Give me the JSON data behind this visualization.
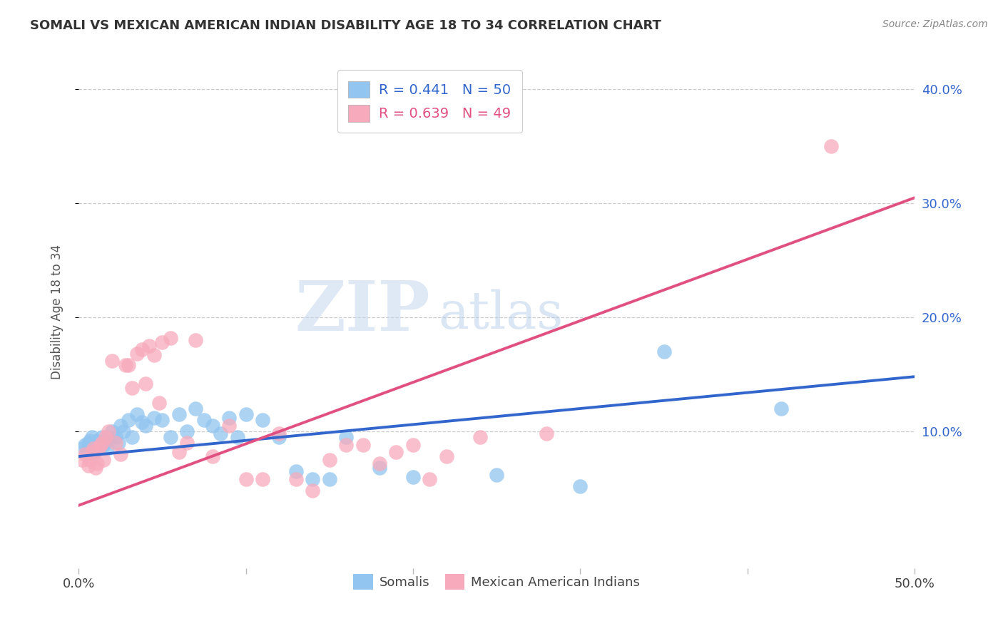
{
  "title": "SOMALI VS MEXICAN AMERICAN INDIAN DISABILITY AGE 18 TO 34 CORRELATION CHART",
  "source": "Source: ZipAtlas.com",
  "ylabel": "Disability Age 18 to 34",
  "xlim": [
    0.0,
    0.5
  ],
  "ylim": [
    -0.02,
    0.43
  ],
  "grid_color": "#cccccc",
  "background_color": "#ffffff",
  "somali_color": "#92C5F0",
  "mexican_color": "#F7AABB",
  "somali_line_color": "#3366CC",
  "mexican_line_color": "#E05080",
  "R_somali": "0.441",
  "N_somali": "50",
  "R_mexican": "0.639",
  "N_mexican": "49",
  "legend_labels": [
    "Somalis",
    "Mexican American Indians"
  ],
  "watermark_zip": "ZIP",
  "watermark_atlas": "atlas",
  "somali_line_x0": 0.0,
  "somali_line_y0": 0.078,
  "somali_line_x1": 0.5,
  "somali_line_y1": 0.148,
  "mexican_line_x0": 0.0,
  "mexican_line_y0": 0.035,
  "mexican_line_x1": 0.5,
  "mexican_line_y1": 0.305,
  "somali_x": [
    0.002,
    0.004,
    0.005,
    0.006,
    0.007,
    0.008,
    0.009,
    0.01,
    0.011,
    0.012,
    0.013,
    0.014,
    0.015,
    0.016,
    0.017,
    0.018,
    0.02,
    0.022,
    0.024,
    0.025,
    0.027,
    0.03,
    0.032,
    0.035,
    0.038,
    0.04,
    0.045,
    0.05,
    0.055,
    0.06,
    0.065,
    0.07,
    0.075,
    0.08,
    0.085,
    0.09,
    0.095,
    0.1,
    0.11,
    0.12,
    0.13,
    0.14,
    0.15,
    0.16,
    0.18,
    0.2,
    0.25,
    0.3,
    0.35,
    0.42
  ],
  "somali_y": [
    0.085,
    0.088,
    0.082,
    0.09,
    0.092,
    0.095,
    0.08,
    0.088,
    0.092,
    0.085,
    0.09,
    0.095,
    0.088,
    0.092,
    0.085,
    0.095,
    0.1,
    0.095,
    0.09,
    0.105,
    0.1,
    0.11,
    0.095,
    0.115,
    0.108,
    0.105,
    0.112,
    0.11,
    0.095,
    0.115,
    0.1,
    0.12,
    0.11,
    0.105,
    0.098,
    0.112,
    0.095,
    0.115,
    0.11,
    0.095,
    0.065,
    0.058,
    0.058,
    0.095,
    0.068,
    0.06,
    0.062,
    0.052,
    0.17,
    0.12
  ],
  "mexican_x": [
    0.002,
    0.004,
    0.006,
    0.007,
    0.008,
    0.009,
    0.01,
    0.011,
    0.012,
    0.013,
    0.014,
    0.015,
    0.016,
    0.018,
    0.02,
    0.022,
    0.025,
    0.028,
    0.03,
    0.032,
    0.035,
    0.038,
    0.04,
    0.042,
    0.045,
    0.048,
    0.05,
    0.055,
    0.06,
    0.065,
    0.07,
    0.08,
    0.09,
    0.1,
    0.11,
    0.12,
    0.13,
    0.14,
    0.15,
    0.16,
    0.17,
    0.18,
    0.19,
    0.2,
    0.21,
    0.22,
    0.24,
    0.28,
    0.45
  ],
  "mexican_y": [
    0.075,
    0.08,
    0.07,
    0.075,
    0.082,
    0.085,
    0.068,
    0.072,
    0.085,
    0.088,
    0.09,
    0.075,
    0.095,
    0.1,
    0.162,
    0.09,
    0.08,
    0.158,
    0.158,
    0.138,
    0.168,
    0.172,
    0.142,
    0.175,
    0.167,
    0.125,
    0.178,
    0.182,
    0.082,
    0.09,
    0.18,
    0.078,
    0.105,
    0.058,
    0.058,
    0.098,
    0.058,
    0.048,
    0.075,
    0.088,
    0.088,
    0.072,
    0.082,
    0.088,
    0.058,
    0.078,
    0.095,
    0.098,
    0.35
  ]
}
